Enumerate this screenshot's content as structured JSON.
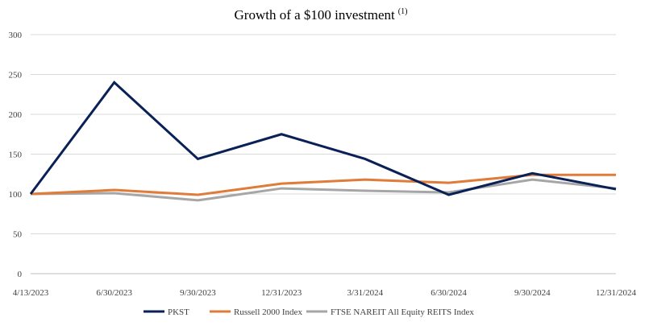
{
  "chart_data": {
    "type": "line",
    "title": "Growth of a $100 investment",
    "title_superscript": "(1)",
    "categories": [
      "4/13/2023",
      "6/30/2023",
      "9/30/2023",
      "12/31/2023",
      "3/31/2024",
      "6/30/2024",
      "9/30/2024",
      "12/31/2024"
    ],
    "ylim": [
      0,
      300
    ],
    "yticks": [
      0,
      50,
      100,
      150,
      200,
      250,
      300
    ],
    "grid": true,
    "legend_position": "bottom",
    "series": [
      {
        "name": "PKST",
        "color": "#0a2157",
        "values": [
          100,
          240,
          144,
          175,
          144,
          99,
          126,
          106
        ]
      },
      {
        "name": "Russell 2000 Index",
        "color": "#e07b39",
        "values": [
          100,
          105,
          99,
          113,
          118,
          114,
          124,
          124
        ]
      },
      {
        "name": "FTSE NAREIT All Equity REITS Index",
        "color": "#a6a6a6",
        "values": [
          100,
          101,
          92,
          107,
          104,
          102,
          118,
          107
        ]
      }
    ]
  }
}
